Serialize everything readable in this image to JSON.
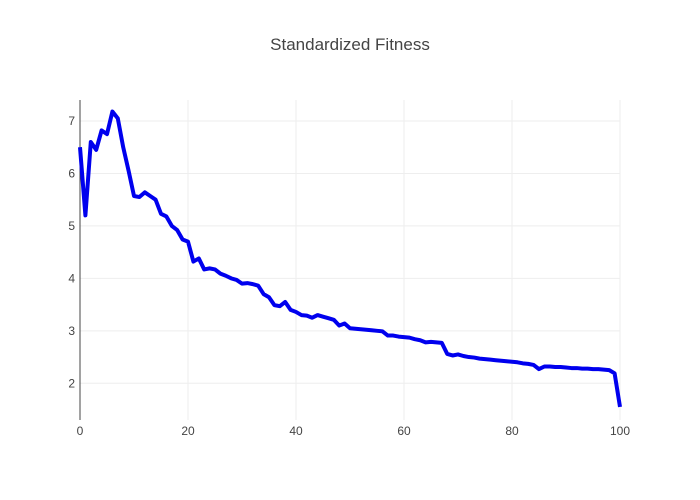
{
  "chart_data": {
    "type": "line",
    "title": "Standardized Fitness",
    "xlabel": "",
    "ylabel": "",
    "xlim": [
      0,
      100
    ],
    "ylim": [
      1.3,
      7.4
    ],
    "x_ticks": [
      0,
      20,
      40,
      60,
      80,
      100
    ],
    "y_ticks": [
      2,
      3,
      4,
      5,
      6,
      7
    ],
    "grid": true,
    "legend": "none",
    "series": [
      {
        "color": "#0000ee",
        "x": [
          0,
          1,
          2,
          3,
          4,
          5,
          6,
          7,
          8,
          9,
          10,
          11,
          12,
          13,
          14,
          15,
          16,
          17,
          18,
          19,
          20,
          21,
          22,
          23,
          24,
          25,
          26,
          27,
          28,
          29,
          30,
          31,
          32,
          33,
          34,
          35,
          36,
          37,
          38,
          39,
          40,
          41,
          42,
          43,
          44,
          45,
          46,
          47,
          48,
          49,
          50,
          51,
          52,
          53,
          54,
          55,
          56,
          57,
          58,
          59,
          60,
          61,
          62,
          63,
          64,
          65,
          66,
          67,
          68,
          69,
          70,
          71,
          72,
          73,
          74,
          75,
          76,
          77,
          78,
          79,
          80,
          81,
          82,
          83,
          84,
          85,
          86,
          87,
          88,
          89,
          90,
          91,
          92,
          93,
          94,
          95,
          96,
          97,
          98,
          99,
          100
        ],
        "y": [
          6.5,
          5.2,
          6.6,
          6.45,
          6.82,
          6.75,
          7.18,
          7.05,
          6.5,
          6.05,
          5.57,
          5.55,
          5.64,
          5.57,
          5.5,
          5.23,
          5.18,
          5.0,
          4.92,
          4.74,
          4.7,
          4.32,
          4.38,
          4.17,
          4.19,
          4.17,
          4.09,
          4.05,
          4.0,
          3.97,
          3.9,
          3.91,
          3.89,
          3.86,
          3.7,
          3.64,
          3.49,
          3.47,
          3.55,
          3.4,
          3.36,
          3.3,
          3.29,
          3.25,
          3.3,
          3.27,
          3.24,
          3.21,
          3.1,
          3.14,
          3.05,
          3.04,
          3.03,
          3.02,
          3.01,
          3.0,
          2.99,
          2.91,
          2.91,
          2.89,
          2.88,
          2.87,
          2.84,
          2.82,
          2.78,
          2.79,
          2.78,
          2.77,
          2.56,
          2.53,
          2.55,
          2.52,
          2.5,
          2.49,
          2.47,
          2.46,
          2.45,
          2.44,
          2.43,
          2.42,
          2.41,
          2.4,
          2.38,
          2.37,
          2.35,
          2.27,
          2.32,
          2.32,
          2.31,
          2.31,
          2.3,
          2.29,
          2.29,
          2.28,
          2.28,
          2.27,
          2.27,
          2.26,
          2.25,
          2.19,
          1.55
        ]
      }
    ]
  }
}
